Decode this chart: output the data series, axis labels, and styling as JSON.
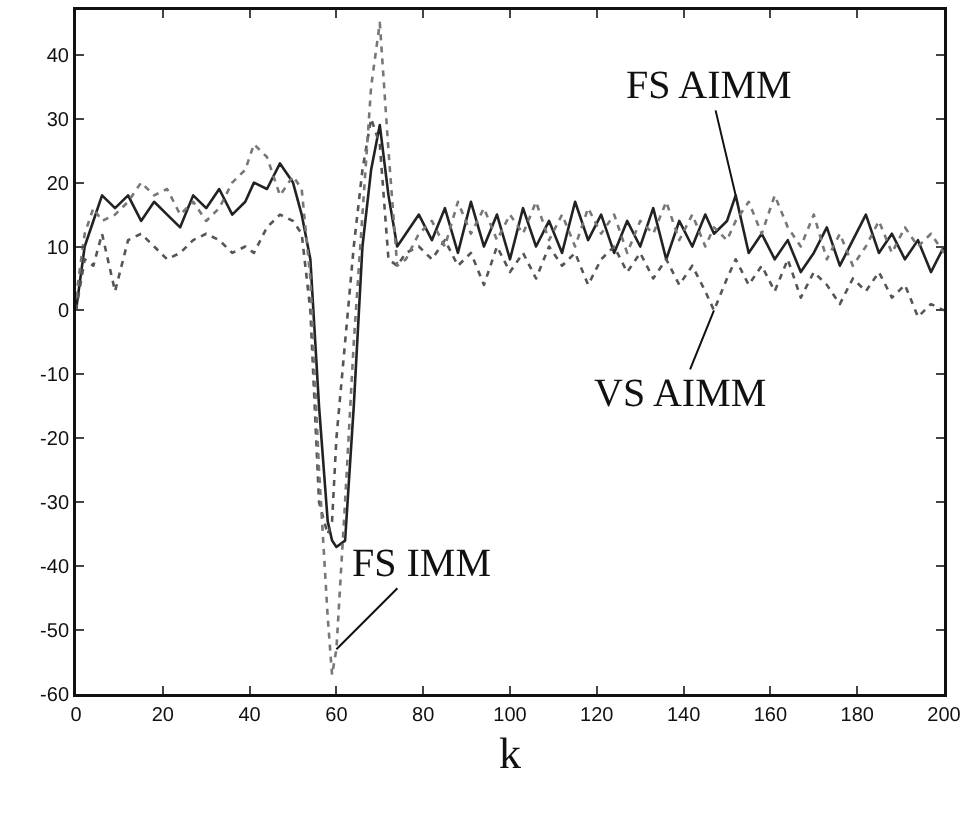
{
  "chart_data": {
    "type": "line",
    "xlabel": "k",
    "x": [
      0,
      2,
      4,
      6,
      9,
      12,
      15,
      18,
      21,
      24,
      27,
      30,
      33,
      36,
      39,
      41,
      44,
      47,
      50,
      52,
      54,
      56,
      58,
      59,
      60,
      62,
      64,
      66,
      68,
      70,
      72,
      74,
      76,
      79,
      82,
      85,
      88,
      91,
      94,
      97,
      100,
      103,
      106,
      109,
      112,
      115,
      118,
      121,
      124,
      127,
      130,
      133,
      136,
      139,
      142,
      145,
      147,
      150,
      152,
      155,
      158,
      161,
      164,
      167,
      170,
      173,
      176,
      179,
      182,
      185,
      188,
      191,
      194,
      197,
      200
    ],
    "series": [
      {
        "color": "#222222",
        "line_style": "solid",
        "values": [
          0,
          10,
          14,
          18,
          16,
          18,
          14,
          17,
          15,
          13,
          18,
          16,
          19,
          15,
          17,
          20,
          19,
          23,
          20,
          15,
          8,
          -15,
          -33,
          -36,
          -37,
          -36,
          -15,
          10,
          22,
          29,
          18,
          10,
          12,
          15,
          11,
          16,
          9,
          17,
          10,
          15,
          8,
          16,
          10,
          14,
          9,
          17,
          11,
          15,
          9,
          14,
          10,
          16,
          8,
          14,
          10,
          15,
          12,
          14,
          18,
          9,
          12,
          8,
          11,
          6,
          9,
          13,
          7,
          11,
          15,
          9,
          12,
          8,
          11,
          6,
          10
        ]
      },
      {
        "color": "#555555",
        "line_style": "dotted",
        "values": [
          0,
          8,
          7,
          12,
          3,
          11,
          12,
          10,
          8,
          9,
          11,
          12,
          11,
          9,
          10,
          9,
          13,
          15,
          14,
          12,
          0,
          -30,
          -35,
          -33,
          -20,
          -5,
          10,
          22,
          30,
          26,
          8,
          7,
          9,
          10,
          8,
          11,
          7,
          9,
          4,
          10,
          6,
          9,
          5,
          10,
          7,
          9,
          4,
          8,
          10,
          6,
          9,
          5,
          8,
          4,
          7,
          3,
          0,
          5,
          8,
          4,
          7,
          3,
          8,
          2,
          6,
          4,
          1,
          5,
          3,
          6,
          2,
          4,
          -1,
          1,
          0
        ]
      },
      {
        "color": "#777777",
        "line_style": "dotted",
        "values": [
          2,
          12,
          16,
          14,
          15,
          17,
          20,
          18,
          19,
          15,
          17,
          14,
          16,
          20,
          22,
          26,
          24,
          18,
          21,
          19,
          5,
          -25,
          -48,
          -57,
          -53,
          -30,
          -5,
          15,
          35,
          45,
          25,
          7,
          8,
          12,
          14,
          10,
          17,
          12,
          16,
          11,
          15,
          12,
          17,
          11,
          15,
          10,
          16,
          12,
          15,
          9,
          14,
          12,
          17,
          11,
          15,
          10,
          13,
          11,
          14,
          17,
          12,
          18,
          13,
          10,
          15,
          8,
          12,
          7,
          10,
          14,
          9,
          13,
          10,
          12,
          9
        ]
      }
    ],
    "annotations": [
      {
        "text": "FS AIMM",
        "x": 152,
        "y": 18
      },
      {
        "text": "VS AIMM",
        "x": 147,
        "y": 0
      },
      {
        "text": "FS IMM",
        "x": 60,
        "y": -53
      }
    ],
    "xlim": [
      0,
      200
    ],
    "xticks": [
      0,
      20,
      40,
      60,
      80,
      100,
      120,
      140,
      160,
      180,
      200
    ],
    "ylim": [
      -60,
      47
    ],
    "yticks": [
      -60,
      -50,
      -40,
      -30,
      -20,
      -10,
      0,
      10,
      20,
      30,
      40
    ],
    "grid": false,
    "marker": "none"
  }
}
